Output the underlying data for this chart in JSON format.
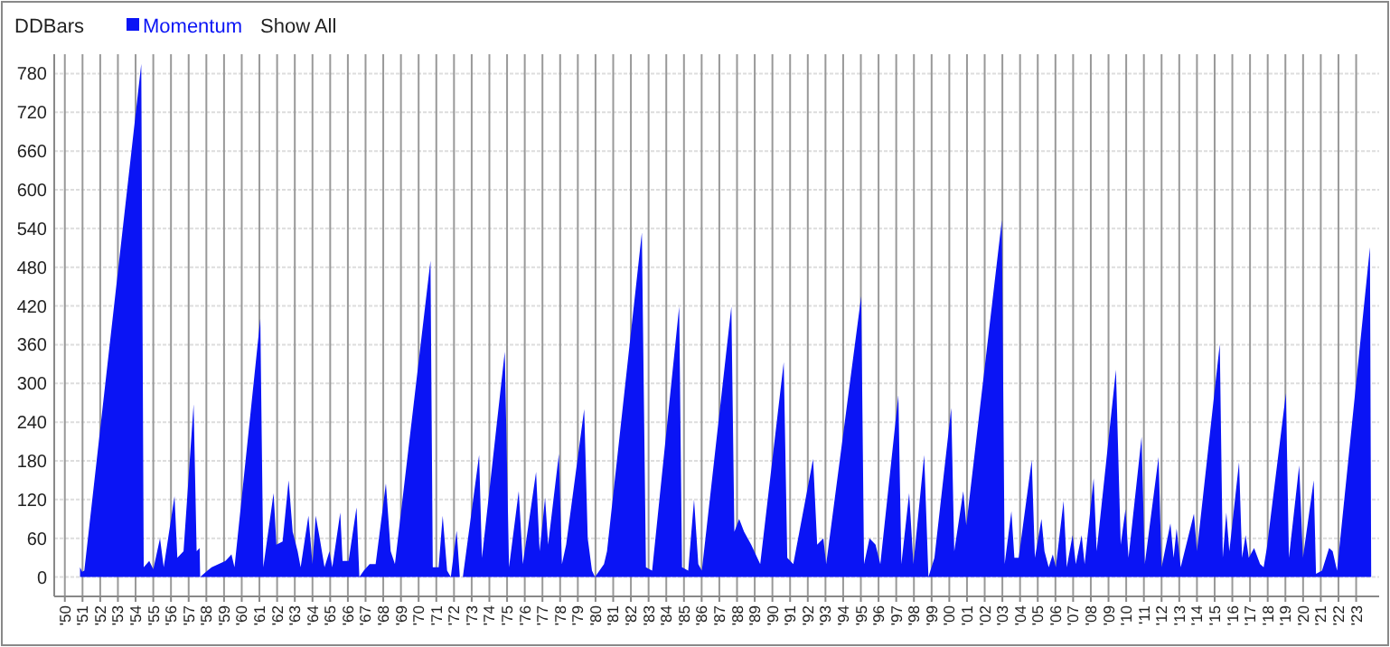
{
  "chart_data": {
    "type": "area",
    "title": "DDBars",
    "legend": "top left",
    "grid": true,
    "annotations": [
      "Show All"
    ],
    "x": [
      1950.86,
      1950.98,
      1951.1,
      1954.32,
      1954.46,
      1954.77,
      1955.0,
      1955.38,
      1955.59,
      1956.2,
      1956.36,
      1956.71,
      1957.28,
      1957.45,
      1957.62,
      1957.65,
      1958.06,
      1958.3,
      1959.08,
      1959.42,
      1959.59,
      1961.05,
      1961.22,
      1961.8,
      1961.96,
      1962.31,
      1962.65,
      1962.88,
      1963.16,
      1963.33,
      1963.77,
      1964.0,
      1964.18,
      1964.41,
      1964.68,
      1964.96,
      1965.12,
      1965.57,
      1965.7,
      1966.04,
      1966.49,
      1966.65,
      1966.9,
      1967.23,
      1967.57,
      1968.15,
      1968.42,
      1968.66,
      1970.67,
      1970.8,
      1971.13,
      1971.36,
      1971.61,
      1971.82,
      1972.15,
      1972.33,
      1972.5,
      1973.42,
      1973.58,
      1974.87,
      1975.11,
      1975.66,
      1975.89,
      1976.64,
      1976.84,
      1977.15,
      1977.32,
      1977.93,
      1978.1,
      1978.34,
      1979.36,
      1979.56,
      1979.8,
      1979.97,
      1980.48,
      1980.65,
      1982.62,
      1982.85,
      1983.2,
      1984.73,
      1984.89,
      1985.24,
      1985.57,
      1985.81,
      1986.01,
      1987.68,
      1987.85,
      1988.12,
      1988.4,
      1988.8,
      1989.31,
      1990.64,
      1990.84,
      1991.18,
      1992.3,
      1992.53,
      1992.88,
      1993.04,
      1995.02,
      1995.18,
      1995.49,
      1995.83,
      1996.1,
      1997.12,
      1997.29,
      1997.73,
      1997.97,
      1998.58,
      1998.82,
      1999.16,
      2000.11,
      2000.28,
      2000.79,
      2000.96,
      2002.97,
      2003.13,
      2003.51,
      2003.68,
      2003.92,
      2004.66,
      2004.84,
      2005.21,
      2005.38,
      2005.62,
      2005.85,
      2006.02,
      2006.46,
      2006.64,
      2006.97,
      2007.15,
      2007.48,
      2007.65,
      2008.16,
      2008.33,
      2009.42,
      2009.69,
      2009.96,
      2010.13,
      2010.87,
      2011.05,
      2011.83,
      2012.0,
      2012.5,
      2012.68,
      2012.85,
      2013.08,
      2013.83,
      2014.0,
      2015.29,
      2015.46,
      2015.66,
      2015.83,
      2016.38,
      2016.55,
      2016.75,
      2016.93,
      2017.23,
      2017.57,
      2017.77,
      2017.95,
      2019.03,
      2019.2,
      2019.78,
      2019.99,
      2020.6,
      2020.73,
      2021.07,
      2021.47,
      2021.67,
      2021.92,
      2023.78,
      2023.85
    ],
    "series": [
      {
        "name": "Momentum",
        "color": "#0a14f5",
        "values": [
          15,
          8,
          10,
          795,
          15,
          25,
          12,
          60,
          15,
          125,
          30,
          40,
          268,
          40,
          45,
          0,
          10,
          15,
          25,
          35,
          15,
          400,
          15,
          130,
          50,
          55,
          150,
          70,
          40,
          15,
          95,
          20,
          95,
          60,
          15,
          40,
          15,
          100,
          25,
          25,
          108,
          0,
          10,
          20,
          20,
          145,
          40,
          20,
          490,
          15,
          15,
          95,
          10,
          0,
          72,
          0,
          0,
          189,
          30,
          349,
          15,
          133,
          20,
          163,
          40,
          123,
          50,
          191,
          20,
          50,
          260,
          60,
          10,
          0,
          20,
          40,
          534,
          15,
          10,
          419,
          15,
          10,
          120,
          20,
          10,
          419,
          70,
          90,
          70,
          50,
          20,
          333,
          30,
          20,
          183,
          50,
          60,
          20,
          435,
          20,
          60,
          50,
          20,
          282,
          20,
          130,
          20,
          189,
          0,
          30,
          262,
          40,
          133,
          80,
          553,
          20,
          102,
          30,
          30,
          181,
          30,
          90,
          40,
          15,
          35,
          15,
          118,
          15,
          65,
          20,
          65,
          20,
          153,
          40,
          321,
          50,
          105,
          30,
          217,
          20,
          186,
          15,
          83,
          30,
          75,
          15,
          98,
          40,
          361,
          30,
          100,
          40,
          178,
          30,
          65,
          30,
          45,
          20,
          15,
          45,
          285,
          30,
          173,
          30,
          150,
          5,
          10,
          45,
          40,
          10,
          511,
          0
        ]
      }
    ],
    "xlim": [
      1949.4,
      2024.3
    ],
    "xticks": [
      {
        "value": 1950,
        "label": "'50"
      },
      {
        "value": 1951,
        "label": "'51"
      },
      {
        "value": 1952,
        "label": "'52"
      },
      {
        "value": 1953,
        "label": "'53"
      },
      {
        "value": 1954,
        "label": "'54"
      },
      {
        "value": 1955,
        "label": "'55"
      },
      {
        "value": 1956,
        "label": "'56"
      },
      {
        "value": 1957,
        "label": "'57"
      },
      {
        "value": 1958,
        "label": "'58"
      },
      {
        "value": 1959,
        "label": "'59"
      },
      {
        "value": 1960,
        "label": "'60"
      },
      {
        "value": 1961,
        "label": "'61"
      },
      {
        "value": 1962,
        "label": "'62"
      },
      {
        "value": 1963,
        "label": "'63"
      },
      {
        "value": 1964,
        "label": "'64"
      },
      {
        "value": 1965,
        "label": "'65"
      },
      {
        "value": 1966,
        "label": "'66"
      },
      {
        "value": 1967,
        "label": "'67"
      },
      {
        "value": 1968,
        "label": "'68"
      },
      {
        "value": 1969,
        "label": "'69"
      },
      {
        "value": 1970,
        "label": "'70"
      },
      {
        "value": 1971,
        "label": "'71"
      },
      {
        "value": 1972,
        "label": "'72"
      },
      {
        "value": 1973,
        "label": "'73"
      },
      {
        "value": 1974,
        "label": "'74"
      },
      {
        "value": 1975,
        "label": "'75"
      },
      {
        "value": 1976,
        "label": "'76"
      },
      {
        "value": 1977,
        "label": "'77"
      },
      {
        "value": 1978,
        "label": "'78"
      },
      {
        "value": 1979,
        "label": "'79"
      },
      {
        "value": 1980,
        "label": "'80"
      },
      {
        "value": 1981,
        "label": "'81"
      },
      {
        "value": 1982,
        "label": "'82"
      },
      {
        "value": 1983,
        "label": "'83"
      },
      {
        "value": 1984,
        "label": "'84"
      },
      {
        "value": 1985,
        "label": "'85"
      },
      {
        "value": 1986,
        "label": "'86"
      },
      {
        "value": 1987,
        "label": "'87"
      },
      {
        "value": 1988,
        "label": "'88"
      },
      {
        "value": 1989,
        "label": "'89"
      },
      {
        "value": 1990,
        "label": "'90"
      },
      {
        "value": 1991,
        "label": "'91"
      },
      {
        "value": 1992,
        "label": "'92"
      },
      {
        "value": 1993,
        "label": "'93"
      },
      {
        "value": 1994,
        "label": "'94"
      },
      {
        "value": 1995,
        "label": "'95"
      },
      {
        "value": 1996,
        "label": "'96"
      },
      {
        "value": 1997,
        "label": "'97"
      },
      {
        "value": 1998,
        "label": "'98"
      },
      {
        "value": 1999,
        "label": "'99"
      },
      {
        "value": 2000,
        "label": "'00"
      },
      {
        "value": 2001,
        "label": "'01"
      },
      {
        "value": 2002,
        "label": "'02"
      },
      {
        "value": 2003,
        "label": "'03"
      },
      {
        "value": 2004,
        "label": "'04"
      },
      {
        "value": 2005,
        "label": "'05"
      },
      {
        "value": 2006,
        "label": "'06"
      },
      {
        "value": 2007,
        "label": "'07"
      },
      {
        "value": 2008,
        "label": "'08"
      },
      {
        "value": 2009,
        "label": "'09"
      },
      {
        "value": 2010,
        "label": "'10"
      },
      {
        "value": 2011,
        "label": "'11"
      },
      {
        "value": 2012,
        "label": "'12"
      },
      {
        "value": 2013,
        "label": "'13"
      },
      {
        "value": 2014,
        "label": "'14"
      },
      {
        "value": 2015,
        "label": "'15"
      },
      {
        "value": 2016,
        "label": "'16"
      },
      {
        "value": 2017,
        "label": "'17"
      },
      {
        "value": 2018,
        "label": "'18"
      },
      {
        "value": 2019,
        "label": "'19"
      },
      {
        "value": 2020,
        "label": "'20"
      },
      {
        "value": 2021,
        "label": "'21"
      },
      {
        "value": 2022,
        "label": "'22"
      },
      {
        "value": 2023,
        "label": "'23"
      }
    ],
    "ylim": [
      -30,
      810
    ],
    "yticks": [
      0,
      60,
      120,
      180,
      240,
      300,
      360,
      420,
      480,
      540,
      600,
      660,
      720,
      780
    ]
  }
}
